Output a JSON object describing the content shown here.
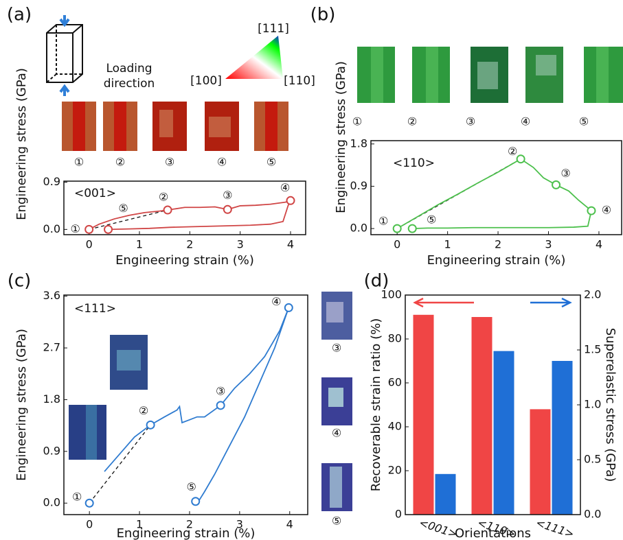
{
  "chart_data": [
    {
      "type": "line",
      "panel": "(a)",
      "annotation": "<001>",
      "xlabel": "Engineering strain (%)",
      "ylabel": "Engineering stress (GPa)",
      "loading_label": "Loading direction",
      "ipf_labels": [
        "[111]",
        "[100]",
        "[110]"
      ],
      "snapshot_labels": [
        "①",
        "②",
        "③",
        "④",
        "⑤"
      ],
      "xlim": [
        -0.5,
        4.3
      ],
      "ylim": [
        -0.1,
        0.92
      ],
      "xticks": [
        0,
        1,
        2,
        3,
        4
      ],
      "yticks": [
        {
          "value": 0,
          "label": "0.0"
        },
        {
          "value": 0.9,
          "label": "0.9"
        }
      ],
      "series": [
        {
          "color": "#d04545",
          "x": [
            0,
            0.2,
            0.5,
            0.8,
            1.1,
            1.4,
            1.56,
            1.9,
            2.2,
            2.5,
            2.75,
            3.0,
            3.3,
            3.6,
            3.9,
            4.0
          ],
          "values": [
            0,
            0.1,
            0.2,
            0.27,
            0.32,
            0.35,
            0.37,
            0.42,
            0.42,
            0.43,
            0.38,
            0.45,
            0.46,
            0.48,
            0.52,
            0.55
          ]
        },
        {
          "color": "#d04545",
          "x": [
            4.0,
            3.95,
            3.85,
            3.6,
            3.2,
            2.8,
            2.4,
            2.0,
            1.6,
            1.2,
            0.8,
            0.38
          ],
          "values": [
            0.55,
            0.45,
            0.15,
            0.1,
            0.08,
            0.07,
            0.06,
            0.05,
            0.04,
            0.02,
            0.01,
            0
          ]
        }
      ],
      "points": {
        "x": [
          0,
          1.56,
          2.75,
          4.0,
          0.38
        ],
        "values": [
          0,
          0.37,
          0.38,
          0.55,
          0
        ],
        "labels": [
          "①",
          "②",
          "③",
          "④",
          "⑤"
        ]
      }
    },
    {
      "type": "line",
      "panel": "(b)",
      "annotation": "<110>",
      "xlabel": "Engineering strain (%)",
      "ylabel": "Engineering stress (GPa)",
      "snapshot_labels": [
        "①",
        "②",
        "③",
        "④",
        "⑤"
      ],
      "xlim": [
        -0.52,
        4.45
      ],
      "ylim": [
        -0.13,
        1.87
      ],
      "xticks": [
        0,
        1,
        2,
        3,
        4
      ],
      "yticks": [
        {
          "value": 0,
          "label": "0.0"
        },
        {
          "value": 0.9,
          "label": "0.9"
        },
        {
          "value": 1.8,
          "label": "1.8"
        }
      ],
      "series": [
        {
          "color": "#4cc04c",
          "x": [
            0,
            0.4,
            0.8,
            1.2,
            1.6,
            2.0,
            2.45,
            2.7,
            2.9,
            3.15,
            3.4,
            3.6,
            3.85
          ],
          "values": [
            0,
            0.25,
            0.5,
            0.73,
            0.97,
            1.2,
            1.48,
            1.3,
            1.08,
            0.93,
            0.8,
            0.6,
            0.38
          ]
        },
        {
          "color": "#4cc04c",
          "x": [
            3.85,
            3.78,
            3.5,
            3.0,
            2.5,
            2.0,
            1.5,
            1.0,
            0.6,
            0.3
          ],
          "values": [
            0.38,
            0.05,
            0.03,
            0.02,
            0.02,
            0.02,
            0.02,
            0.01,
            0.01,
            0
          ]
        }
      ],
      "points": {
        "x": [
          0,
          2.45,
          3.15,
          3.85,
          0.3
        ],
        "values": [
          0,
          1.48,
          0.93,
          0.38,
          0
        ],
        "labels": [
          "①",
          "②",
          "③",
          "④",
          "⑤"
        ]
      }
    },
    {
      "type": "line",
      "panel": "(c)",
      "annotation": "<111>",
      "xlabel": "Engineering strain (%)",
      "ylabel": "Engineering stress (GPa)",
      "snapshot_labels": [
        "③",
        "④",
        "⑤"
      ],
      "xlim": [
        -0.51,
        4.36
      ],
      "ylim": [
        -0.2,
        3.62
      ],
      "xticks": [
        0,
        1,
        2,
        3,
        4
      ],
      "yticks": [
        {
          "value": 0,
          "label": "0.0"
        },
        {
          "value": 0.9,
          "label": "0.9"
        },
        {
          "value": 1.8,
          "label": "1.8"
        },
        {
          "value": 2.7,
          "label": "2.7"
        },
        {
          "value": 3.6,
          "label": "3.6"
        }
      ],
      "series": [
        {
          "color": "#2e7bd0",
          "x": [
            0.3,
            0.6,
            0.9,
            1.22,
            1.5,
            1.75,
            1.8,
            1.85,
            2.0,
            2.15,
            2.3,
            2.62,
            2.9,
            3.2,
            3.5,
            3.8,
            3.98
          ],
          "values": [
            0.55,
            0.85,
            1.15,
            1.36,
            1.5,
            1.62,
            1.68,
            1.4,
            1.45,
            1.5,
            1.5,
            1.7,
            2.0,
            2.25,
            2.55,
            3.0,
            3.4
          ]
        },
        {
          "color": "#2e7bd0",
          "x": [
            3.98,
            3.7,
            3.4,
            3.1,
            2.8,
            2.5,
            2.3,
            2.2,
            2.12
          ],
          "values": [
            3.4,
            2.7,
            2.1,
            1.5,
            1.0,
            0.5,
            0.2,
            0.06,
            0.03
          ]
        }
      ],
      "points": {
        "x": [
          0,
          1.22,
          2.62,
          3.98,
          2.12
        ],
        "values": [
          0,
          1.36,
          1.7,
          3.4,
          0.03
        ],
        "labels": [
          "①",
          "②",
          "③",
          "④",
          "⑤"
        ]
      }
    },
    {
      "type": "bar",
      "panel": "(d)",
      "xlabel": "Orientations",
      "ylabel": "Recoverable strain ratio (%)",
      "y2label": "Superelastic stress (GPa)",
      "categories": [
        "<001>",
        "<110>",
        "<111>"
      ],
      "ylim": [
        0,
        100
      ],
      "yticks": [
        0,
        20,
        40,
        60,
        80,
        100
      ],
      "y2lim": [
        0,
        2
      ],
      "y2ticks": [
        {
          "value": 0,
          "label": "0.0"
        },
        {
          "value": 0.5,
          "label": "0.5"
        },
        {
          "value": 1,
          "label": "1.0"
        },
        {
          "value": 1.5,
          "label": "1.5"
        },
        {
          "value": 2,
          "label": "2.0"
        }
      ],
      "series": [
        {
          "color": "#f04545",
          "values": [
            91,
            90,
            48
          ]
        },
        {
          "color": "#1f6fd6",
          "axis": "y2",
          "values": [
            0.37,
            1.49,
            1.4
          ]
        }
      ]
    }
  ]
}
